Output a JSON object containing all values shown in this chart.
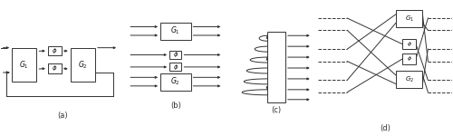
{
  "fig_bg": "#ffffff",
  "box_color": "#ffffff",
  "line_color": "#333333",
  "label_color": "#111111",
  "panels": [
    "(a)",
    "(b)",
    "(c)",
    "(d)"
  ]
}
